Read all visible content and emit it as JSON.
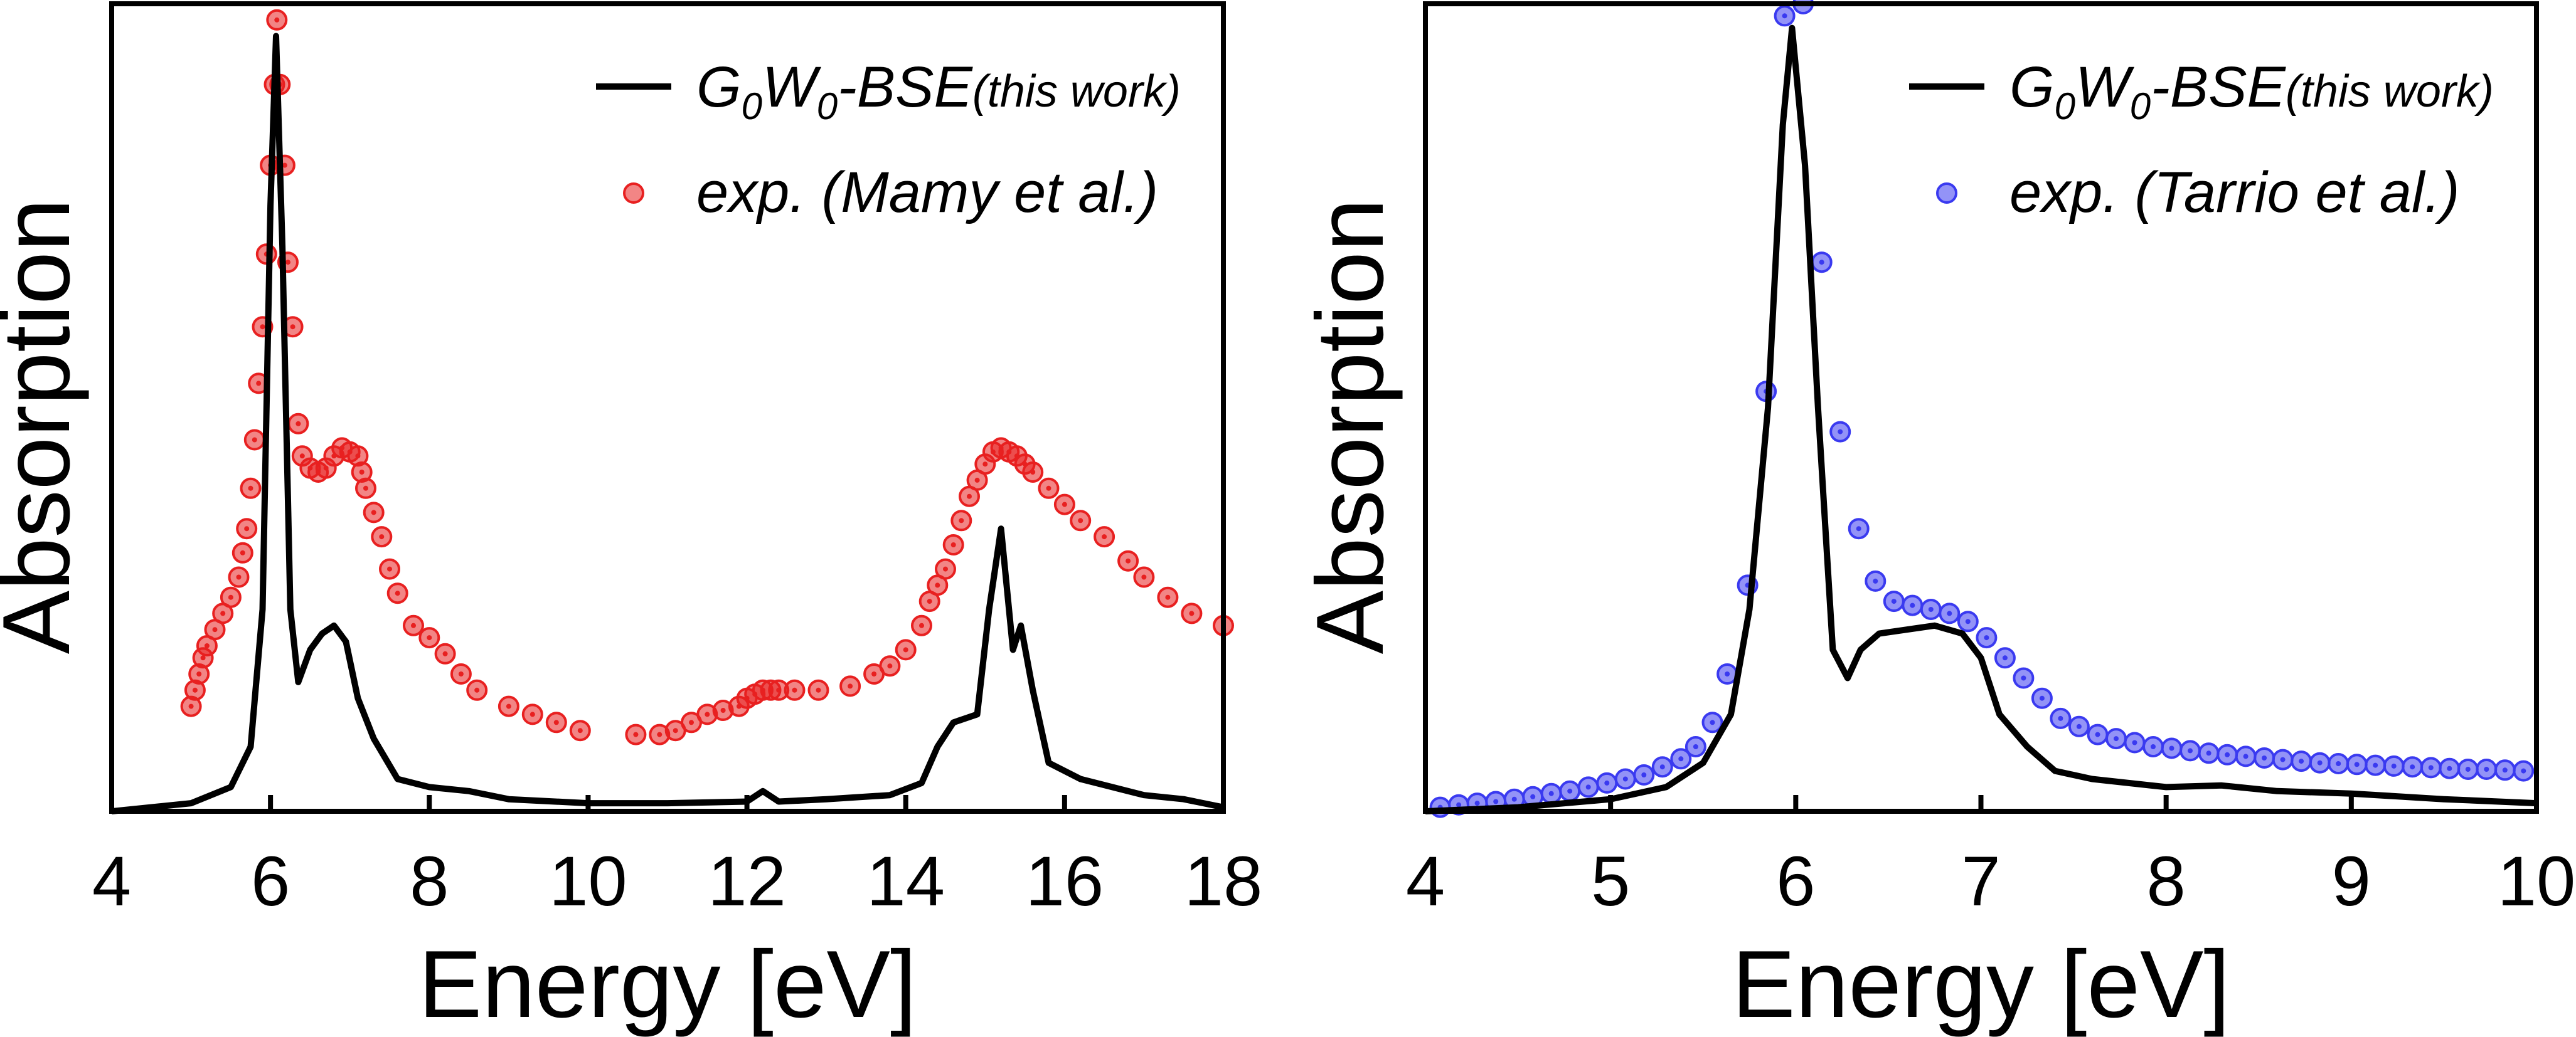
{
  "chart_data": [
    {
      "type": "line+scatter",
      "title": "",
      "xlabel": "Energy [eV]",
      "ylabel": "Absorption",
      "xlim": [
        4,
        18
      ],
      "ylim": [
        0,
        1.0
      ],
      "xticks": [
        4,
        6,
        8,
        10,
        12,
        14,
        16,
        18
      ],
      "xtick_labels": [
        "4",
        "6",
        "8",
        "10",
        "12",
        "14",
        "16",
        "18"
      ],
      "y_tick_labels_shown": false,
      "legend_position": "top-right",
      "series": [
        {
          "name": "G0W0-BSE(this work)",
          "legend": {
            "main": "G",
            "sub1": "0",
            "mid": "W",
            "sub2": "0",
            "tail": "-BSE",
            "small": "(this work)"
          },
          "kind": "line",
          "color": "#000000",
          "points": [
            [
              4.0,
              0.0
            ],
            [
              5.0,
              0.01
            ],
            [
              5.5,
              0.03
            ],
            [
              5.75,
              0.08
            ],
            [
              5.9,
              0.25
            ],
            [
              6.0,
              0.75
            ],
            [
              6.07,
              0.96
            ],
            [
              6.15,
              0.7
            ],
            [
              6.25,
              0.25
            ],
            [
              6.35,
              0.16
            ],
            [
              6.5,
              0.2
            ],
            [
              6.65,
              0.22
            ],
            [
              6.8,
              0.23
            ],
            [
              6.95,
              0.21
            ],
            [
              7.1,
              0.14
            ],
            [
              7.3,
              0.09
            ],
            [
              7.6,
              0.04
            ],
            [
              8.0,
              0.03
            ],
            [
              8.5,
              0.025
            ],
            [
              9.0,
              0.015
            ],
            [
              10.0,
              0.01
            ],
            [
              11.0,
              0.01
            ],
            [
              12.0,
              0.012
            ],
            [
              12.2,
              0.025
            ],
            [
              12.4,
              0.012
            ],
            [
              13.0,
              0.015
            ],
            [
              13.8,
              0.02
            ],
            [
              14.2,
              0.035
            ],
            [
              14.4,
              0.08
            ],
            [
              14.6,
              0.11
            ],
            [
              14.9,
              0.12
            ],
            [
              15.05,
              0.25
            ],
            [
              15.2,
              0.35
            ],
            [
              15.35,
              0.2
            ],
            [
              15.45,
              0.23
            ],
            [
              15.6,
              0.15
            ],
            [
              15.8,
              0.06
            ],
            [
              16.2,
              0.04
            ],
            [
              17.0,
              0.02
            ],
            [
              17.5,
              0.015
            ],
            [
              18.0,
              0.005
            ]
          ]
        },
        {
          "name": "exp. (Mamy et al.)",
          "legend": "exp. (Mamy et al.)",
          "kind": "scatter",
          "color": "#e82020",
          "points": [
            [
              5.0,
              0.13
            ],
            [
              5.05,
              0.15
            ],
            [
              5.1,
              0.17
            ],
            [
              5.15,
              0.19
            ],
            [
              5.2,
              0.205
            ],
            [
              5.3,
              0.225
            ],
            [
              5.4,
              0.245
            ],
            [
              5.5,
              0.265
            ],
            [
              5.6,
              0.29
            ],
            [
              5.65,
              0.32
            ],
            [
              5.7,
              0.35
            ],
            [
              5.75,
              0.4
            ],
            [
              5.8,
              0.46
            ],
            [
              5.85,
              0.53
            ],
            [
              5.9,
              0.6
            ],
            [
              5.95,
              0.69
            ],
            [
              6.0,
              0.8
            ],
            [
              6.05,
              0.9
            ],
            [
              6.08,
              0.98
            ],
            [
              6.12,
              0.9
            ],
            [
              6.18,
              0.8
            ],
            [
              6.22,
              0.68
            ],
            [
              6.28,
              0.6
            ],
            [
              6.35,
              0.48
            ],
            [
              6.4,
              0.44
            ],
            [
              6.5,
              0.425
            ],
            [
              6.6,
              0.42
            ],
            [
              6.7,
              0.425
            ],
            [
              6.8,
              0.44
            ],
            [
              6.9,
              0.45
            ],
            [
              7.0,
              0.445
            ],
            [
              7.1,
              0.44
            ],
            [
              7.15,
              0.42
            ],
            [
              7.2,
              0.4
            ],
            [
              7.3,
              0.37
            ],
            [
              7.4,
              0.34
            ],
            [
              7.5,
              0.3
            ],
            [
              7.6,
              0.27
            ],
            [
              7.8,
              0.23
            ],
            [
              8.0,
              0.215
            ],
            [
              8.2,
              0.195
            ],
            [
              8.4,
              0.17
            ],
            [
              8.6,
              0.15
            ],
            [
              9.0,
              0.13
            ],
            [
              9.3,
              0.12
            ],
            [
              9.6,
              0.11
            ],
            [
              9.9,
              0.1
            ],
            [
              10.6,
              0.095
            ],
            [
              10.9,
              0.095
            ],
            [
              11.1,
              0.1
            ],
            [
              11.3,
              0.11
            ],
            [
              11.5,
              0.12
            ],
            [
              11.7,
              0.125
            ],
            [
              11.9,
              0.13
            ],
            [
              12.0,
              0.14
            ],
            [
              12.1,
              0.145
            ],
            [
              12.2,
              0.15
            ],
            [
              12.3,
              0.15
            ],
            [
              12.4,
              0.15
            ],
            [
              12.6,
              0.15
            ],
            [
              12.9,
              0.15
            ],
            [
              13.3,
              0.155
            ],
            [
              13.6,
              0.17
            ],
            [
              13.8,
              0.18
            ],
            [
              14.0,
              0.2
            ],
            [
              14.2,
              0.23
            ],
            [
              14.3,
              0.26
            ],
            [
              14.4,
              0.28
            ],
            [
              14.5,
              0.3
            ],
            [
              14.6,
              0.33
            ],
            [
              14.7,
              0.36
            ],
            [
              14.8,
              0.39
            ],
            [
              14.9,
              0.41
            ],
            [
              15.0,
              0.43
            ],
            [
              15.1,
              0.445
            ],
            [
              15.2,
              0.45
            ],
            [
              15.3,
              0.445
            ],
            [
              15.4,
              0.44
            ],
            [
              15.5,
              0.43
            ],
            [
              15.6,
              0.42
            ],
            [
              15.8,
              0.4
            ],
            [
              16.0,
              0.38
            ],
            [
              16.2,
              0.36
            ],
            [
              16.5,
              0.34
            ],
            [
              16.8,
              0.31
            ],
            [
              17.0,
              0.29
            ],
            [
              17.3,
              0.265
            ],
            [
              17.6,
              0.245
            ],
            [
              18.0,
              0.23
            ]
          ]
        }
      ]
    },
    {
      "type": "line+scatter",
      "title": "",
      "xlabel": "Energy [eV]",
      "ylabel": "Absorption",
      "xlim": [
        4,
        10
      ],
      "ylim": [
        0,
        1.0
      ],
      "xticks": [
        4,
        5,
        6,
        7,
        8,
        9,
        10
      ],
      "xtick_labels": [
        "4",
        "5",
        "6",
        "7",
        "8",
        "9",
        "10"
      ],
      "y_tick_labels_shown": false,
      "legend_position": "top-right",
      "series": [
        {
          "name": "G0W0-BSE(this work)",
          "legend": {
            "main": "G",
            "sub1": "0",
            "mid": "W",
            "sub2": "0",
            "tail": "-BSE",
            "small": "(this work)"
          },
          "kind": "line",
          "color": "#000000",
          "points": [
            [
              4.0,
              0.0
            ],
            [
              4.5,
              0.005
            ],
            [
              5.0,
              0.015
            ],
            [
              5.3,
              0.03
            ],
            [
              5.5,
              0.06
            ],
            [
              5.65,
              0.12
            ],
            [
              5.75,
              0.25
            ],
            [
              5.85,
              0.5
            ],
            [
              5.93,
              0.85
            ],
            [
              5.98,
              0.97
            ],
            [
              6.05,
              0.8
            ],
            [
              6.12,
              0.5
            ],
            [
              6.2,
              0.2
            ],
            [
              6.28,
              0.165
            ],
            [
              6.35,
              0.2
            ],
            [
              6.45,
              0.22
            ],
            [
              6.6,
              0.225
            ],
            [
              6.75,
              0.23
            ],
            [
              6.9,
              0.22
            ],
            [
              7.0,
              0.19
            ],
            [
              7.1,
              0.12
            ],
            [
              7.25,
              0.08
            ],
            [
              7.4,
              0.05
            ],
            [
              7.6,
              0.04
            ],
            [
              8.0,
              0.03
            ],
            [
              8.3,
              0.032
            ],
            [
              8.6,
              0.025
            ],
            [
              9.0,
              0.022
            ],
            [
              9.5,
              0.015
            ],
            [
              10.0,
              0.01
            ]
          ]
        },
        {
          "name": "exp. (Tarrio et al.)",
          "legend": "exp. (Tarrio et al.)",
          "kind": "scatter",
          "color": "#3a3af0",
          "points": [
            [
              4.08,
              0.005
            ],
            [
              4.18,
              0.008
            ],
            [
              4.28,
              0.01
            ],
            [
              4.38,
              0.012
            ],
            [
              4.48,
              0.015
            ],
            [
              4.58,
              0.018
            ],
            [
              4.68,
              0.022
            ],
            [
              4.78,
              0.025
            ],
            [
              4.88,
              0.03
            ],
            [
              4.98,
              0.035
            ],
            [
              5.08,
              0.04
            ],
            [
              5.18,
              0.045
            ],
            [
              5.28,
              0.055
            ],
            [
              5.38,
              0.065
            ],
            [
              5.46,
              0.08
            ],
            [
              5.55,
              0.11
            ],
            [
              5.63,
              0.17
            ],
            [
              5.74,
              0.28
            ],
            [
              5.84,
              0.52
            ],
            [
              5.94,
              0.985
            ],
            [
              6.04,
              1.0
            ],
            [
              6.14,
              0.68
            ],
            [
              6.24,
              0.47
            ],
            [
              6.34,
              0.35
            ],
            [
              6.43,
              0.285
            ],
            [
              6.53,
              0.26
            ],
            [
              6.63,
              0.255
            ],
            [
              6.73,
              0.25
            ],
            [
              6.83,
              0.245
            ],
            [
              6.93,
              0.235
            ],
            [
              7.03,
              0.215
            ],
            [
              7.13,
              0.19
            ],
            [
              7.23,
              0.165
            ],
            [
              7.33,
              0.14
            ],
            [
              7.43,
              0.115
            ],
            [
              7.53,
              0.105
            ],
            [
              7.63,
              0.095
            ],
            [
              7.73,
              0.09
            ],
            [
              7.83,
              0.085
            ],
            [
              7.93,
              0.08
            ],
            [
              8.03,
              0.078
            ],
            [
              8.13,
              0.075
            ],
            [
              8.23,
              0.072
            ],
            [
              8.33,
              0.07
            ],
            [
              8.43,
              0.068
            ],
            [
              8.53,
              0.066
            ],
            [
              8.63,
              0.064
            ],
            [
              8.73,
              0.062
            ],
            [
              8.83,
              0.06
            ],
            [
              8.93,
              0.059
            ],
            [
              9.03,
              0.058
            ],
            [
              9.13,
              0.057
            ],
            [
              9.23,
              0.056
            ],
            [
              9.33,
              0.055
            ],
            [
              9.43,
              0.054
            ],
            [
              9.53,
              0.053
            ],
            [
              9.63,
              0.052
            ],
            [
              9.73,
              0.052
            ],
            [
              9.83,
              0.051
            ],
            [
              9.93,
              0.05
            ]
          ]
        }
      ]
    }
  ]
}
